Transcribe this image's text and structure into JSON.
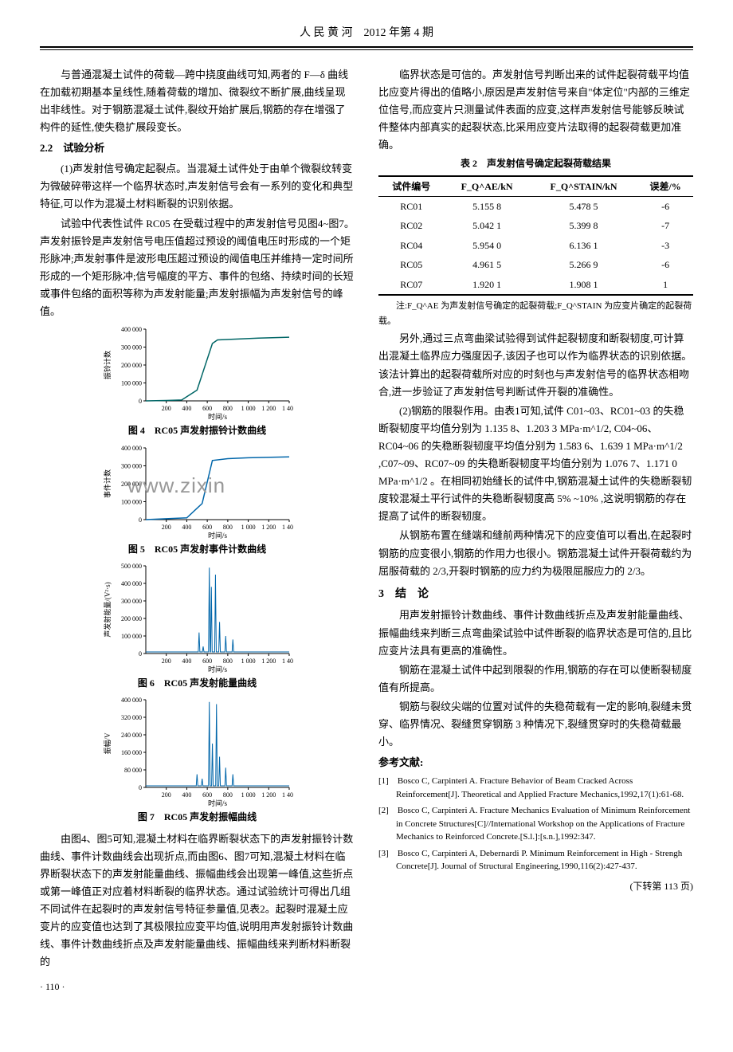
{
  "header": {
    "journal": "人 民 黄 河",
    "issue": "2012 年第 4 期"
  },
  "left": {
    "p1": "与普通混凝土试件的荷载—跨中挠度曲线可知,两者的 F—δ 曲线在加载初期基本呈线性,随着荷载的增加、微裂纹不断扩展,曲线呈现出非线性。对于钢筋混凝土试件,裂纹开始扩展后,钢筋的存在增强了构件的延性,使失稳扩展段变长。",
    "h22": "2.2　试验分析",
    "p2": "(1)声发射信号确定起裂点。当混凝土试件处于由单个微裂纹转变为微破碎带这样一个临界状态时,声发射信号会有一系列的变化和典型特征,可以作为混凝土材料断裂的识别依据。",
    "p3": "试验中代表性试件 RC05 在受载过程中的声发射信号见图4~图7。声发射振铃是声发射信号电压值超过预设的阈值电压时形成的一个矩形脉冲;声发射事件是波形电压超过预设的阈值电压并维持一定时间所形成的一个矩形脉冲;信号幅度的平方、事件的包络、持续时间的长短或事件包络的面积等称为声发射能量;声发射振幅为声发射信号的峰值。",
    "fig4": {
      "ylabel": "振铃计数",
      "yticks": [
        "0",
        "100 000",
        "200 000",
        "300 000",
        "400 000"
      ],
      "xlabel": "时间/s",
      "xticks": [
        "200",
        "400",
        "600",
        "800",
        "1 000",
        "1 200",
        "1 400"
      ],
      "cap": "图 4　RC05 声发射振铃计数曲线",
      "color": "#006666",
      "points": [
        [
          0,
          0
        ],
        [
          200,
          2000
        ],
        [
          350,
          5000
        ],
        [
          500,
          60000
        ],
        [
          650,
          320000
        ],
        [
          700,
          340000
        ],
        [
          900,
          345000
        ],
        [
          1100,
          350000
        ],
        [
          1400,
          355000
        ]
      ]
    },
    "fig5": {
      "ylabel": "事件计数",
      "yticks": [
        "0",
        "100 000",
        "200 000",
        "300 000",
        "400 000"
      ],
      "xlabel": "时间/s",
      "xticks": [
        "200",
        "400",
        "600",
        "800",
        "1 000",
        "1 200",
        "1 400"
      ],
      "cap": "图 5　RC05 声发射事件计数曲线",
      "color": "#0066aa",
      "watermark": "www.zixin",
      "points": [
        [
          0,
          0
        ],
        [
          200,
          5000
        ],
        [
          400,
          10000
        ],
        [
          550,
          90000
        ],
        [
          650,
          330000
        ],
        [
          800,
          340000
        ],
        [
          1000,
          345000
        ],
        [
          1400,
          350000
        ]
      ]
    },
    "fig6": {
      "ylabel": "声发射能量/(V²·s)",
      "yticks": [
        "0",
        "100 000",
        "200 000",
        "300 000",
        "400 000",
        "500 000"
      ],
      "xlabel": "时间/s",
      "xticks": [
        "200",
        "400",
        "600",
        "800",
        "1 000",
        "1 200",
        "1 400"
      ],
      "cap": "图 6　RC05 声发射能量曲线",
      "color": "#0066aa",
      "spikes": [
        [
          520,
          120000
        ],
        [
          560,
          40000
        ],
        [
          620,
          490000
        ],
        [
          640,
          380000
        ],
        [
          680,
          450000
        ],
        [
          720,
          180000
        ],
        [
          780,
          100000
        ],
        [
          850,
          80000
        ]
      ]
    },
    "fig7": {
      "ylabel": "振幅/V",
      "yticks": [
        "0",
        "80 000",
        "160 000",
        "240 000",
        "320 000",
        "400 000"
      ],
      "xlabel": "时间/s",
      "xticks": [
        "200",
        "400",
        "600",
        "800",
        "1 000",
        "1 200",
        "1 400"
      ],
      "cap": "图 7　RC05 声发射振幅曲线",
      "color": "#0066aa",
      "spikes": [
        [
          500,
          60000
        ],
        [
          550,
          40000
        ],
        [
          620,
          390000
        ],
        [
          650,
          200000
        ],
        [
          690,
          380000
        ],
        [
          720,
          140000
        ],
        [
          780,
          90000
        ],
        [
          850,
          60000
        ]
      ]
    },
    "p4": "由图4、图5可知,混凝土材料在临界断裂状态下的声发射振铃计数曲线、事件计数曲线会出现折点,而由图6、图7可知,混凝土材料在临界断裂状态下的声发射能量曲线、振幅曲线会出现第一峰值,这些折点或第一峰值正对应着材料断裂的临界状态。通过试验统计可得出几组不同试件在起裂时的声发射信号特征参量值,见表2。起裂时混凝土应变片的应变值也达到了其极限拉应变平均值,说明用声发射振铃计数曲线、事件计数曲线折点及声发射能量曲线、振幅曲线来判断材料断裂的"
  },
  "right": {
    "p1": "临界状态是可信的。声发射信号判断出来的试件起裂荷载平均值比应变片得出的值略小,原因是声发射信号来自\"体定位\"内部的三维定位信号,而应变片只测量试件表面的应变,这样声发射信号能够反映试件整体内部真实的起裂状态,比采用应变片法取得的起裂荷载更加准确。",
    "table2": {
      "cap": "表 2　声发射信号确定起裂荷载结果",
      "headers": [
        "试件编号",
        "F_Q^AE/kN",
        "F_Q^STAIN/kN",
        "误差/%"
      ],
      "rows": [
        [
          "RC01",
          "5.155 8",
          "5.478 5",
          "-6"
        ],
        [
          "RC02",
          "5.042 1",
          "5.399 8",
          "-7"
        ],
        [
          "RC04",
          "5.954 0",
          "6.136 1",
          "-3"
        ],
        [
          "RC05",
          "4.961 5",
          "5.266 9",
          "-6"
        ],
        [
          "RC07",
          "1.920 1",
          "1.908 1",
          "1"
        ]
      ],
      "note": "注:F_Q^AE 为声发射信号确定的起裂荷载;F_Q^STAIN 为应变片确定的起裂荷载。"
    },
    "p2": "另外,通过三点弯曲梁试验得到试件起裂韧度和断裂韧度,可计算出混凝土临界应力强度因子,该因子也可以作为临界状态的识别依据。该法计算出的起裂荷载所对应的时刻也与声发射信号的临界状态相吻合,进一步验证了声发射信号判断试件开裂的准确性。",
    "p3": "(2)钢筋的限裂作用。由表1可知,试件 C01~03、RC01~03 的失稳断裂韧度平均值分别为 1.135 8、1.203 3 MPa·m^1/2, C04~06、RC04~06 的失稳断裂韧度平均值分别为 1.583 6、1.639 1 MPa·m^1/2 ,C07~09、RC07~09 的失稳断裂韧度平均值分别为 1.076 7、1.171 0 MPa·m^1/2 。在相同初始缝长的试件中,钢筋混凝土试件的失稳断裂韧度较混凝土平行试件的失稳断裂韧度高 5% ~10% ,这说明钢筋的存在提高了试件的断裂韧度。",
    "p4": "从钢筋布置在缝端和缝前两种情况下的应变值可以看出,在起裂时钢筋的应变很小,钢筋的作用力也很小。钢筋混凝土试件开裂荷载约为屈服荷载的 2/3,开裂时钢筋的应力约为极限屈服应力的 2/3。",
    "h3": "3　结　论",
    "p5": "用声发射振铃计数曲线、事件计数曲线折点及声发射能量曲线、振幅曲线来判断三点弯曲梁试验中试件断裂的临界状态是可信的,且比应变片法具有更高的准确性。",
    "p6": "钢筋在混凝土试件中起到限裂的作用,钢筋的存在可以使断裂韧度值有所提高。",
    "p7": "钢筋与裂纹尖端的位置对试件的失稳荷载有一定的影响,裂缝未贯穿、临界情况、裂缝贯穿钢筋 3 种情况下,裂缝贯穿时的失稳荷载最小。",
    "refh": "参考文献:",
    "refs": [
      "[1]　Bosco C, Carpinteri A. Fracture Behavior of Beam Cracked Across Reinforcement[J]. Theoretical and Applied Fracture Mechanics,1992,17(1):61-68.",
      "[2]　Bosco C, Carpinteri A. Fracture Mechanics Evaluation of Minimum Reinforcement in Concrete Structures[C]//International Workshop on the Applications of Fracture Mechanics to Reinforced Concrete.[S.l.]:[s.n.],1992:347.",
      "[3]　Bosco C, Carpinteri A, Debernardi P. Minimum Reinforcement in High - Strengh Concrete[J]. Journal of Structural Engineering,1990,116(2):427-437."
    ],
    "turn": "(下转第 113 页)"
  },
  "pagenum": "· 110 ·"
}
